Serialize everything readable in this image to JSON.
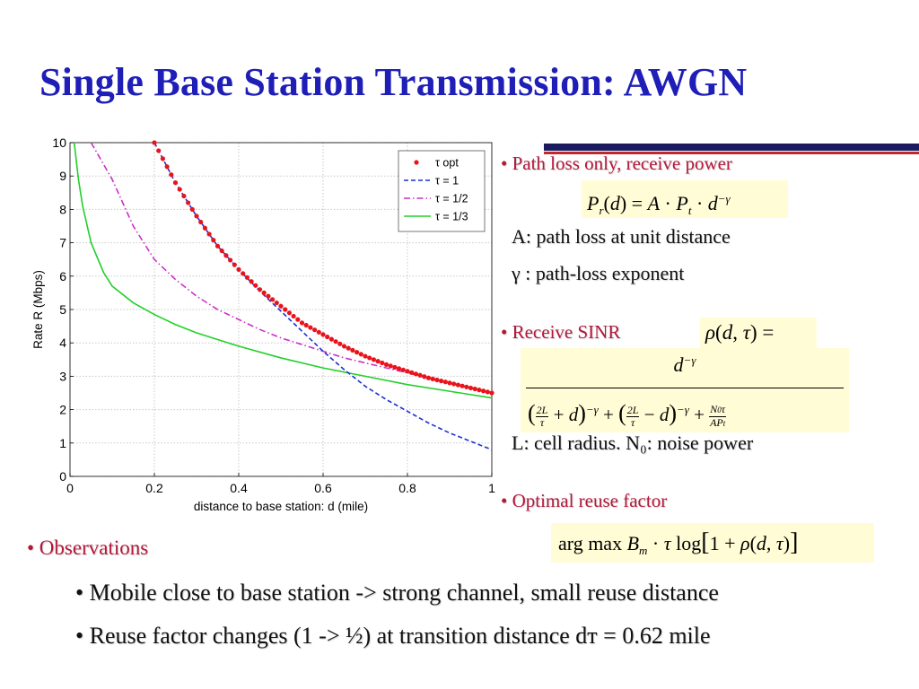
{
  "slide": {
    "title": "Single Base Station Transmission: AWGN",
    "bullets": {
      "path_loss": "• Path loss only, receive power",
      "path_loss_A": "A: path loss at unit distance",
      "gamma": "γ :  path-loss exponent",
      "sinr": "• Receive SINR",
      "cell_radius": "L: cell radius. N₀: noise power",
      "reuse": "• Optimal reuse factor",
      "observations": "• Observations",
      "obs1": "• Mobile close to base station -> strong channel, small reuse distance",
      "obs2": "• Reuse factor changes (1 -> ½) at transition distance dᴛ = 0.62 mile"
    },
    "formulas": {
      "receive_power": "Pr(d) = A · Pt · d^−γ",
      "sinr_lhs": "ρ(d, τ) =",
      "sinr_num": "d^−γ",
      "sinr_den": "(2L/τ + d)^−γ + (2L/τ − d)^−γ + N0τ/APt",
      "reuse": "arg max Bm · τ log[1 + ρ(d, τ)]"
    }
  },
  "chart_data": {
    "type": "line",
    "xlabel": "distance to base station: d (mile)",
    "ylabel": "Rate R (Mbps)",
    "xlim": [
      0,
      1
    ],
    "ylim": [
      0,
      10
    ],
    "xticks": [
      "0",
      "0.2",
      "0.4",
      "0.6",
      "0.8",
      "1"
    ],
    "yticks": [
      "0",
      "1",
      "2",
      "3",
      "4",
      "5",
      "6",
      "7",
      "8",
      "9",
      "10"
    ],
    "grid": true,
    "legend": "top-right",
    "series": [
      {
        "name": "τ opt",
        "style": "dots",
        "color": "#e8141c",
        "x": [
          0.2,
          0.25,
          0.3,
          0.35,
          0.4,
          0.45,
          0.5,
          0.55,
          0.6,
          0.65,
          0.7,
          0.75,
          0.8,
          0.85,
          0.9,
          0.95,
          1.0
        ],
        "y": [
          10.0,
          8.8,
          7.8,
          6.9,
          6.2,
          5.6,
          5.1,
          4.6,
          4.25,
          3.9,
          3.6,
          3.35,
          3.15,
          2.95,
          2.8,
          2.65,
          2.5
        ]
      },
      {
        "name": "τ = 1",
        "style": "dashed",
        "color": "#1f2fd0",
        "x": [
          0.2,
          0.25,
          0.3,
          0.35,
          0.4,
          0.45,
          0.5,
          0.55,
          0.6,
          0.65,
          0.7,
          0.75,
          0.8,
          0.85,
          0.9,
          0.95,
          1.0
        ],
        "y": [
          10.0,
          8.8,
          7.8,
          6.9,
          6.2,
          5.55,
          4.95,
          4.35,
          3.75,
          3.2,
          2.7,
          2.3,
          1.95,
          1.6,
          1.3,
          1.05,
          0.8
        ]
      },
      {
        "name": "τ = 1/2",
        "style": "dashdot",
        "color": "#cc2fc8",
        "x": [
          0.05,
          0.1,
          0.15,
          0.2,
          0.25,
          0.3,
          0.35,
          0.4,
          0.45,
          0.5,
          0.55,
          0.6,
          0.65,
          0.7,
          0.75,
          0.8,
          0.85,
          0.9,
          0.95,
          1.0
        ],
        "y": [
          10.0,
          8.9,
          7.5,
          6.5,
          5.9,
          5.4,
          5.0,
          4.7,
          4.4,
          4.15,
          3.95,
          3.75,
          3.55,
          3.4,
          3.25,
          3.1,
          2.95,
          2.8,
          2.65,
          2.5
        ]
      },
      {
        "name": "τ = 1/3",
        "style": "solid",
        "color": "#22d02a",
        "x": [
          0.01,
          0.02,
          0.03,
          0.05,
          0.08,
          0.1,
          0.15,
          0.2,
          0.25,
          0.3,
          0.4,
          0.5,
          0.6,
          0.7,
          0.8,
          0.9,
          1.0
        ],
        "y": [
          10.0,
          8.9,
          8.1,
          7.0,
          6.1,
          5.7,
          5.2,
          4.85,
          4.55,
          4.3,
          3.9,
          3.55,
          3.25,
          3.0,
          2.75,
          2.55,
          2.35
        ]
      }
    ]
  }
}
